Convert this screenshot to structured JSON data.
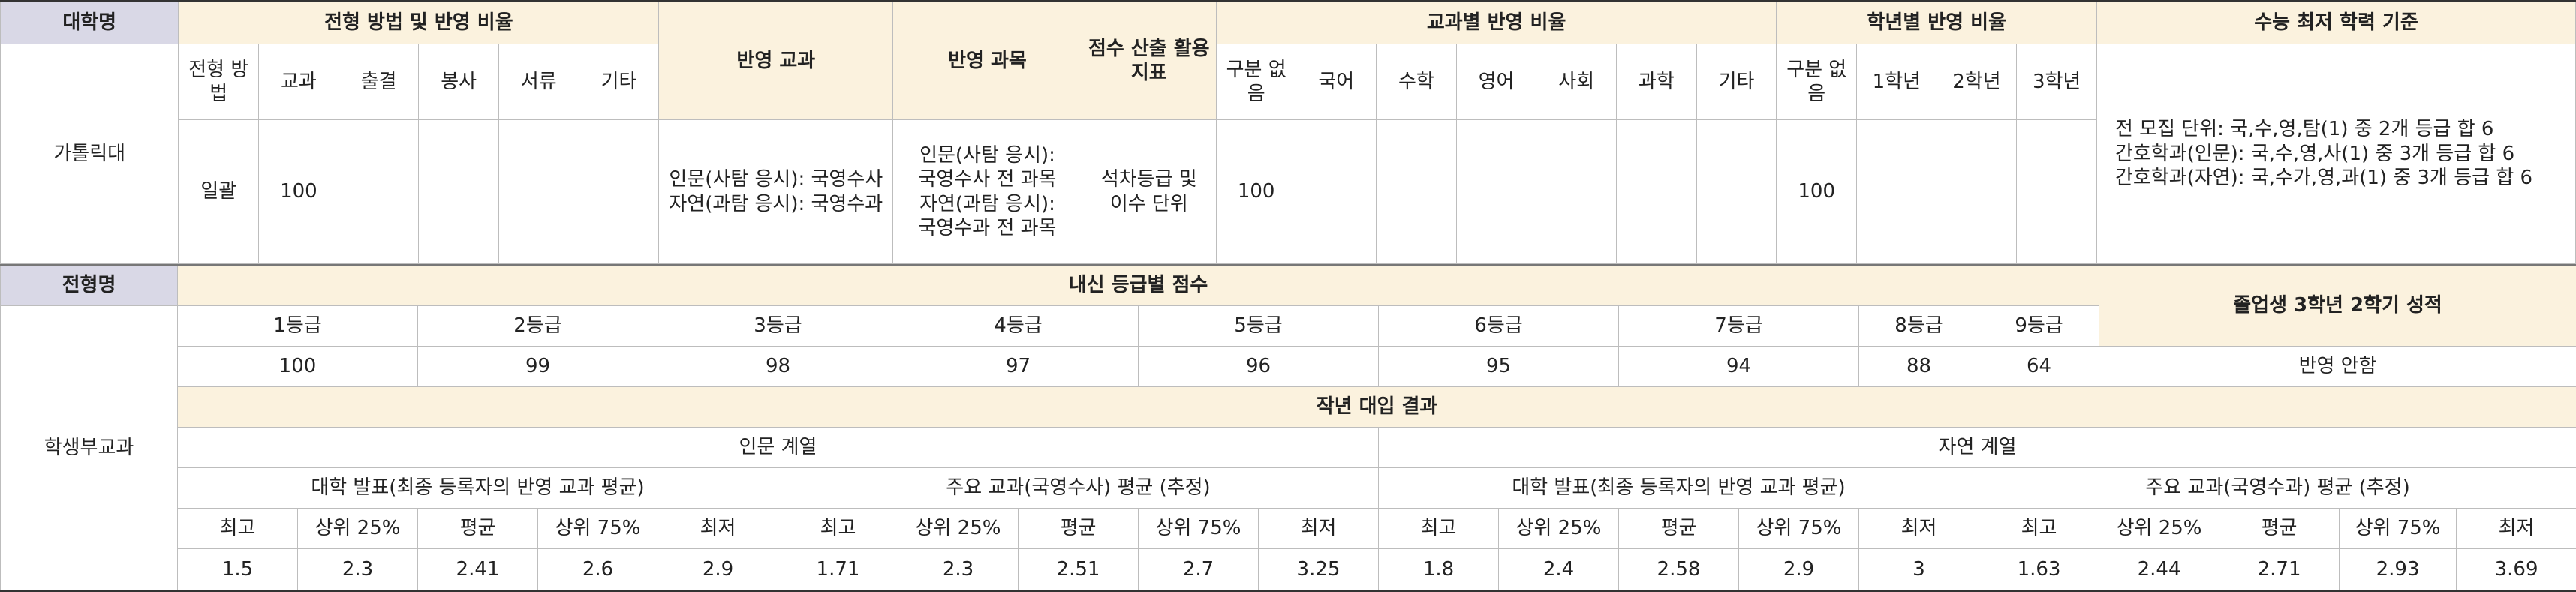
{
  "section1": {
    "header": {
      "university_label": "대학명",
      "method_group": "전형 방법 및 반영 비율",
      "reflected_subjects_label": "반영 교과",
      "reflected_courses_label": "반영 과목",
      "score_index_label": "점수 산출 활용 지표",
      "subject_ratio_group": "교과별 반영 비율",
      "grade_ratio_group": "학년별 반영 비율",
      "csat_min_label": "수능 최저 학력 기준"
    },
    "subheader": {
      "method_cols": [
        "전형 방법",
        "교과",
        "출결",
        "봉사",
        "서류",
        "기타"
      ],
      "subject_cols": [
        "구분 없음",
        "국어",
        "수학",
        "영어",
        "사회",
        "과학",
        "기타"
      ],
      "grade_cols": [
        "구분 없음",
        "1학년",
        "2학년",
        "3학년"
      ]
    },
    "row": {
      "university": "가톨릭대",
      "method": "일괄",
      "subject_ratio_val": "100",
      "reflected_subjects": [
        "인문(사탐 응시): 국영수사",
        "자연(과탐 응시): 국영수과"
      ],
      "reflected_courses": [
        "인문(사탐 응시):",
        "국영수사 전 과목",
        "자연(과탐 응시):",
        "국영수과 전 과목"
      ],
      "score_index": [
        "석차등급 및",
        "이수 단위"
      ],
      "subject_no_div": "100",
      "grade_no_div": "100",
      "csat_min": [
        "전 모집 단위: 국,수,영,탐(1) 중 2개 등급 합 6",
        "간호학과(인문): 국,수,영,사(1) 중 3개 등급 합 6",
        "간호학과(자연): 국,수가,영,과(1) 중 3개 등급 합 6"
      ]
    }
  },
  "section2": {
    "admission_label": "전형명",
    "admission_name": "학생부교과",
    "grade_score_title": "내신 등급별 점수",
    "grades": [
      "1등급",
      "2등급",
      "3등급",
      "4등급",
      "5등급",
      "6등급",
      "7등급",
      "8등급",
      "9등급"
    ],
    "scores": [
      "100",
      "99",
      "98",
      "97",
      "96",
      "95",
      "94",
      "88",
      "64"
    ],
    "graduate_label": "졸업생 3학년 2학기 성적",
    "graduate_value": "반영 안함",
    "last_year_title": "작년 대입 결과",
    "humanities": "인문 계열",
    "natural": "자연 계열",
    "univ_announce": "대학 발표(최종 등록자의 반영 교과 평균)",
    "main_est_hum": "주요 교과(국영수사) 평균 (추정)",
    "main_est_nat": "주요 교과(국영수과) 평균 (추정)",
    "stat_headers": [
      "최고",
      "상위 25%",
      "평균",
      "상위 75%",
      "최저"
    ],
    "hum_announce_vals": [
      "1.5",
      "2.3",
      "2.41",
      "2.6",
      "2.9"
    ],
    "hum_est_vals": [
      "1.71",
      "2.3",
      "2.51",
      "2.7",
      "3.25"
    ],
    "nat_announce_vals": [
      "1.8",
      "2.4",
      "2.58",
      "2.9",
      "3"
    ],
    "nat_est_vals": [
      "1.63",
      "2.44",
      "2.71",
      "2.93",
      "3.69"
    ]
  }
}
